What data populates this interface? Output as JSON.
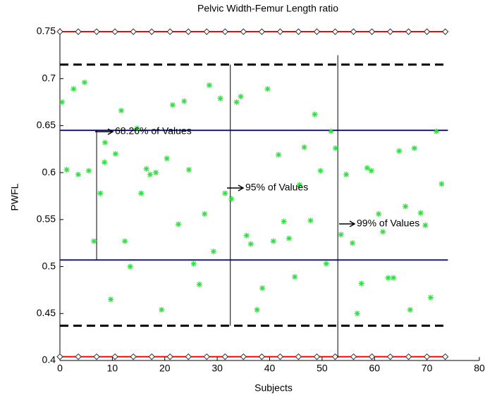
{
  "chart_data": {
    "type": "scatter",
    "title": "Pelvic Width-Femur Length ratio",
    "xlabel": "Subjects",
    "ylabel": "PWFL",
    "xlim": [
      0,
      80
    ],
    "ylim": [
      0.4,
      0.75
    ],
    "xticks": [
      0,
      10,
      20,
      30,
      40,
      50,
      60,
      70,
      80
    ],
    "yticks": [
      0.4,
      0.45,
      0.5,
      0.55,
      0.6,
      0.65,
      0.7,
      0.75
    ],
    "points": {
      "color": "#33dd44",
      "x": [
        0.4,
        1.3,
        2.6,
        3.5,
        4.7,
        5.5,
        6.5,
        7.7,
        8.5,
        8.6,
        9.7,
        10.6,
        11.7,
        12.4,
        13.4,
        14.7,
        15.5,
        16.5,
        17.2,
        18.3,
        19.4,
        20.4,
        21.5,
        22.6,
        23.7,
        24.6,
        25.5,
        26.6,
        27.6,
        28.5,
        29.3,
        30.6,
        31.5,
        32.7,
        33.7,
        34.5,
        35.6,
        36.4,
        37.6,
        38.6,
        39.6,
        40.7,
        41.7,
        42.7,
        43.7,
        44.8,
        45.7,
        46.6,
        47.8,
        48.6,
        49.7,
        50.8,
        51.7,
        52.6,
        53.6,
        54.6,
        55.8,
        56.7,
        57.5,
        58.6,
        59.4,
        60.8,
        61.6,
        62.6,
        63.6,
        64.7,
        65.9,
        66.8,
        67.6,
        68.8,
        69.7,
        70.7,
        71.8,
        72.8
      ],
      "values": [
        0.675,
        0.603,
        0.689,
        0.598,
        0.696,
        0.602,
        0.527,
        0.578,
        0.611,
        0.632,
        0.465,
        0.62,
        0.666,
        0.527,
        0.5,
        0.647,
        0.578,
        0.604,
        0.598,
        0.6,
        0.454,
        0.615,
        0.672,
        0.545,
        0.676,
        0.603,
        0.503,
        0.481,
        0.556,
        0.693,
        0.516,
        0.679,
        0.578,
        0.572,
        0.675,
        0.681,
        0.533,
        0.524,
        0.454,
        0.477,
        0.689,
        0.527,
        0.619,
        0.548,
        0.53,
        0.489,
        0.587,
        0.627,
        0.549,
        0.662,
        0.602,
        0.503,
        0.644,
        0.626,
        0.534,
        0.598,
        0.525,
        0.45,
        0.482,
        0.605,
        0.602,
        0.556,
        0.537,
        0.488,
        0.488,
        0.623,
        0.564,
        0.454,
        0.626,
        0.557,
        0.544,
        0.467,
        0.644,
        0.588
      ]
    },
    "lines": [
      {
        "color": "#ff0000",
        "style": "solid",
        "marker": "diamond",
        "x": [
          0,
          3.5,
          7,
          10.5,
          14,
          17.5,
          21,
          24.5,
          28,
          31.5,
          35,
          38.5,
          42,
          45.5,
          49,
          52.5,
          56,
          59.5,
          63,
          66.5,
          70,
          73.5
        ],
        "values": [
          0.75,
          0.75,
          0.75,
          0.75,
          0.75,
          0.75,
          0.75,
          0.75,
          0.75,
          0.75,
          0.75,
          0.75,
          0.75,
          0.75,
          0.75,
          0.75,
          0.75,
          0.75,
          0.75,
          0.75,
          0.75,
          0.75
        ]
      },
      {
        "color": "#ff0000",
        "style": "solid",
        "marker": "diamond",
        "x": [
          0,
          3.5,
          7,
          10.5,
          14,
          17.5,
          21,
          24.5,
          28,
          31.5,
          35,
          38.5,
          42,
          45.5,
          49,
          52.5,
          56,
          59.5,
          63,
          66.5,
          70,
          73.5
        ],
        "values": [
          0.404,
          0.404,
          0.404,
          0.404,
          0.404,
          0.404,
          0.404,
          0.404,
          0.404,
          0.404,
          0.404,
          0.404,
          0.404,
          0.404,
          0.404,
          0.404,
          0.404,
          0.404,
          0.404,
          0.404,
          0.404,
          0.404
        ]
      },
      {
        "color": "#000000",
        "style": "dashed",
        "x": [
          0,
          74
        ],
        "values": [
          0.715,
          0.715
        ]
      },
      {
        "color": "#000000",
        "style": "dashed",
        "x": [
          0,
          74
        ],
        "values": [
          0.437,
          0.437
        ]
      },
      {
        "color": "#1a1a80",
        "style": "solid",
        "x": [
          0,
          74
        ],
        "values": [
          0.645,
          0.645
        ]
      },
      {
        "color": "#1a1a80",
        "style": "solid",
        "x": [
          0,
          74
        ],
        "values": [
          0.507,
          0.507
        ]
      },
      {
        "color": "#000000",
        "style": "thin",
        "x": [
          7,
          7
        ],
        "values": [
          0.507,
          0.645
        ]
      },
      {
        "color": "#000000",
        "style": "thin",
        "x": [
          32.5,
          32.5
        ],
        "values": [
          0.437,
          0.715
        ]
      },
      {
        "color": "#000000",
        "style": "thin",
        "x": [
          53,
          53
        ],
        "values": [
          0.403,
          0.725
        ]
      }
    ],
    "annotations": [
      "68.26% of Values",
      "95% of Values",
      "99% of Values"
    ]
  }
}
